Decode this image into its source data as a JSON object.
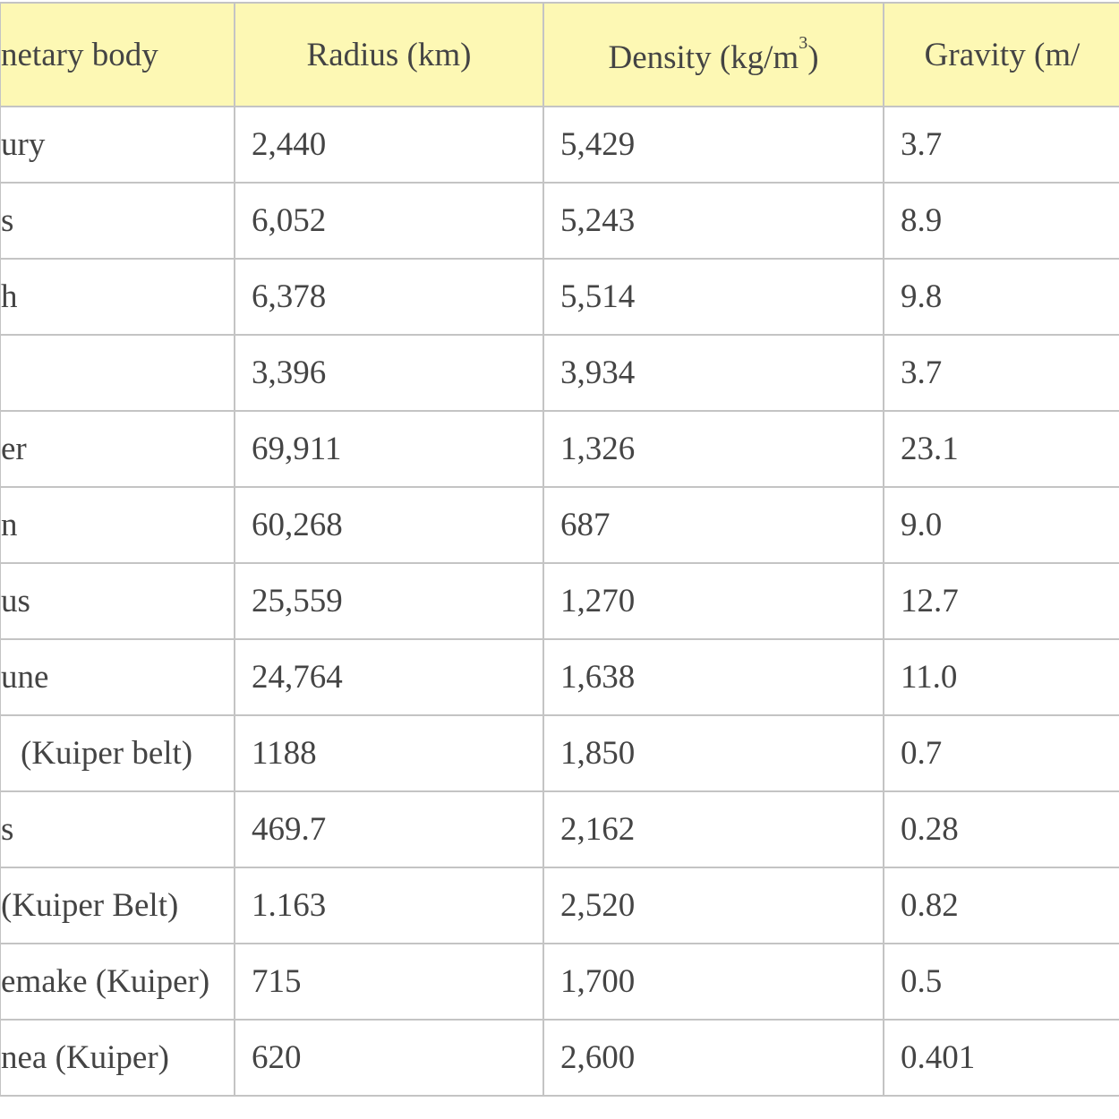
{
  "table": {
    "header": [
      "netary body",
      "Radius (km)",
      {
        "text": "Density (kg/m",
        "sup": "3",
        "tail": ")"
      },
      "Gravity (m/"
    ],
    "rows": [
      [
        "ury",
        "2,440",
        "5,429",
        "3.7"
      ],
      [
        "s",
        "6,052",
        "5,243",
        "8.9"
      ],
      [
        "h",
        "6,378",
        "5,514",
        "9.8"
      ],
      [
        null,
        "3,396",
        "3,934",
        "3.7"
      ],
      [
        "er",
        "69,911",
        "1,326",
        "23.1"
      ],
      [
        "n",
        "60,268",
        "687",
        "9.0"
      ],
      [
        "us",
        "25,559",
        "1,270",
        "12.7"
      ],
      [
        "une",
        "24,764",
        "1,638",
        "11.0"
      ],
      [
        "(Kuiper belt)",
        "1188",
        "1,850",
        "0.7"
      ],
      [
        "s",
        "469.7",
        "2,162",
        "0.28"
      ],
      [
        "(Kuiper Belt)",
        "1.163",
        "2,520",
        "0.82"
      ],
      [
        "emake (Kuiper)",
        "715",
        "1,700",
        "0.5"
      ],
      [
        "nea (Kuiper)",
        "620",
        "2,600",
        "0.401"
      ]
    ]
  }
}
